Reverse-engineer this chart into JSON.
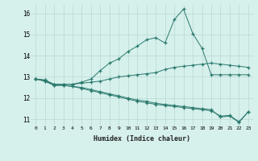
{
  "xlabel": "Humidex (Indice chaleur)",
  "x": [
    0,
    1,
    2,
    3,
    4,
    5,
    6,
    7,
    8,
    9,
    10,
    11,
    12,
    13,
    14,
    15,
    16,
    17,
    18,
    19,
    20,
    21,
    22,
    23
  ],
  "line_top": [
    12.9,
    12.85,
    12.65,
    12.65,
    12.65,
    12.75,
    12.9,
    13.3,
    13.65,
    13.85,
    14.2,
    14.45,
    14.75,
    14.85,
    14.6,
    15.7,
    16.2,
    15.05,
    14.35,
    13.1,
    13.1,
    13.1,
    13.1,
    13.1
  ],
  "line_mid": [
    12.9,
    12.85,
    12.65,
    12.65,
    12.65,
    12.7,
    12.75,
    12.8,
    12.9,
    13.0,
    13.05,
    13.1,
    13.15,
    13.2,
    13.35,
    13.45,
    13.5,
    13.55,
    13.6,
    13.65,
    13.6,
    13.55,
    13.5,
    13.45
  ],
  "line_bot1": [
    12.9,
    12.8,
    12.6,
    12.6,
    12.55,
    12.5,
    12.4,
    12.3,
    12.2,
    12.1,
    12.0,
    11.9,
    11.85,
    11.75,
    11.7,
    11.65,
    11.6,
    11.55,
    11.5,
    11.45,
    11.1,
    11.15,
    10.85,
    11.35
  ],
  "line_bot2": [
    12.9,
    12.8,
    12.6,
    12.6,
    12.55,
    12.45,
    12.35,
    12.25,
    12.15,
    12.05,
    11.95,
    11.85,
    11.78,
    11.7,
    11.65,
    11.6,
    11.55,
    11.5,
    11.45,
    11.4,
    11.15,
    11.18,
    10.88,
    11.35
  ],
  "line_color": "#2a7a6d",
  "bg_color": "#d6f0ec",
  "grid_color": "#b8d8d2",
  "ylim": [
    10.7,
    16.4
  ],
  "xlim": [
    -0.5,
    23.5
  ],
  "yticks": [
    11,
    12,
    13,
    14,
    15,
    16
  ],
  "xticks": [
    0,
    1,
    2,
    3,
    4,
    5,
    6,
    7,
    8,
    9,
    10,
    11,
    12,
    13,
    14,
    15,
    16,
    17,
    18,
    19,
    20,
    21,
    22,
    23
  ]
}
